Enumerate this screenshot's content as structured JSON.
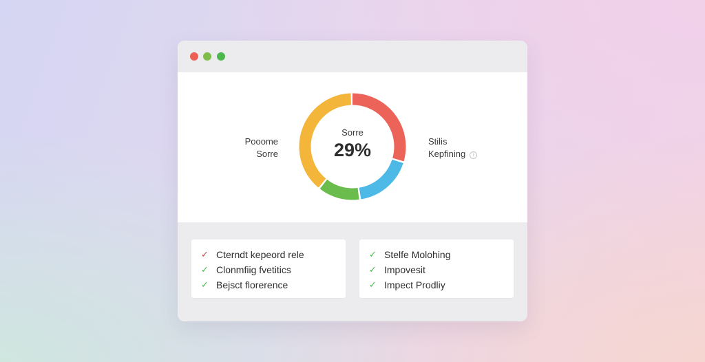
{
  "window": {
    "controls": [
      "close",
      "minimize",
      "maximize"
    ]
  },
  "donut": {
    "label": "Sorre",
    "value": "29%",
    "segments": [
      {
        "color": "#ec6459",
        "fraction": 0.3
      },
      {
        "color": "#4db9e6",
        "fraction": 0.18
      },
      {
        "color": "#6abd4d",
        "fraction": 0.13
      },
      {
        "color": "#f3b53a",
        "fraction": 0.39
      }
    ]
  },
  "side_left": {
    "line1": "Pooome",
    "line2": "Sorre"
  },
  "side_right": {
    "line1": "Stilis",
    "line2": "Kepfining",
    "icon": "info-icon"
  },
  "checklist_left": [
    {
      "text": "Cterndt kepeord rele",
      "check_color": "#c0504d"
    },
    {
      "text": "Clonmfiig fvetitics",
      "check_color": "#4cb84d"
    },
    {
      "text": "Bejsct florerence",
      "check_color": "#4cb84d"
    }
  ],
  "checklist_right": [
    {
      "text": "Stelfe Molohing",
      "check_color": "#4cb84d"
    },
    {
      "text": "Impovesit",
      "check_color": "#4cb84d"
    },
    {
      "text": "Impect Prodliy",
      "check_color": "#4cb84d"
    }
  ],
  "colors": {
    "close": "#ec5f56",
    "minimize": "#7fbd4a",
    "maximize": "#4cb84d"
  }
}
